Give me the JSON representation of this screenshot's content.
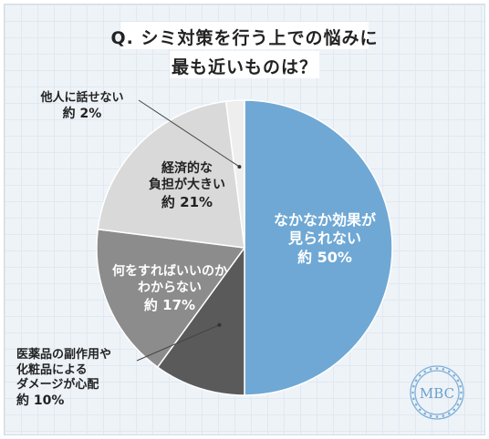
{
  "title": {
    "line1": "Q. シミ対策を行う上での悩みに",
    "line2": "最も近いものは？"
  },
  "logo_text": "MBC",
  "chart_data": {
    "type": "pie",
    "title": "Q. シミ対策を行う上での悩みに最も近いものは？",
    "slices": [
      {
        "label_lines": [
          "なかなか効果が",
          "見られない"
        ],
        "pct_text": "約 50%",
        "value": 50,
        "color": "#6fa8d4"
      },
      {
        "label_lines": [
          "医薬品の副作用や",
          "化粧品による",
          "ダメージが心配"
        ],
        "pct_text": "約 10%",
        "value": 10,
        "color": "#5a5a5a"
      },
      {
        "label_lines": [
          "何をすればいいのか",
          "わからない"
        ],
        "pct_text": "約 17%",
        "value": 17,
        "color": "#8c8c8c"
      },
      {
        "label_lines": [
          "経済的な",
          "負担が大きい"
        ],
        "pct_text": "約 21%",
        "value": 21,
        "color": "#d9d9d9"
      },
      {
        "label_lines": [
          "他人に話せない"
        ],
        "pct_text": "約 2%",
        "value": 2,
        "color": "#eeeeee"
      }
    ],
    "legend": "none"
  }
}
